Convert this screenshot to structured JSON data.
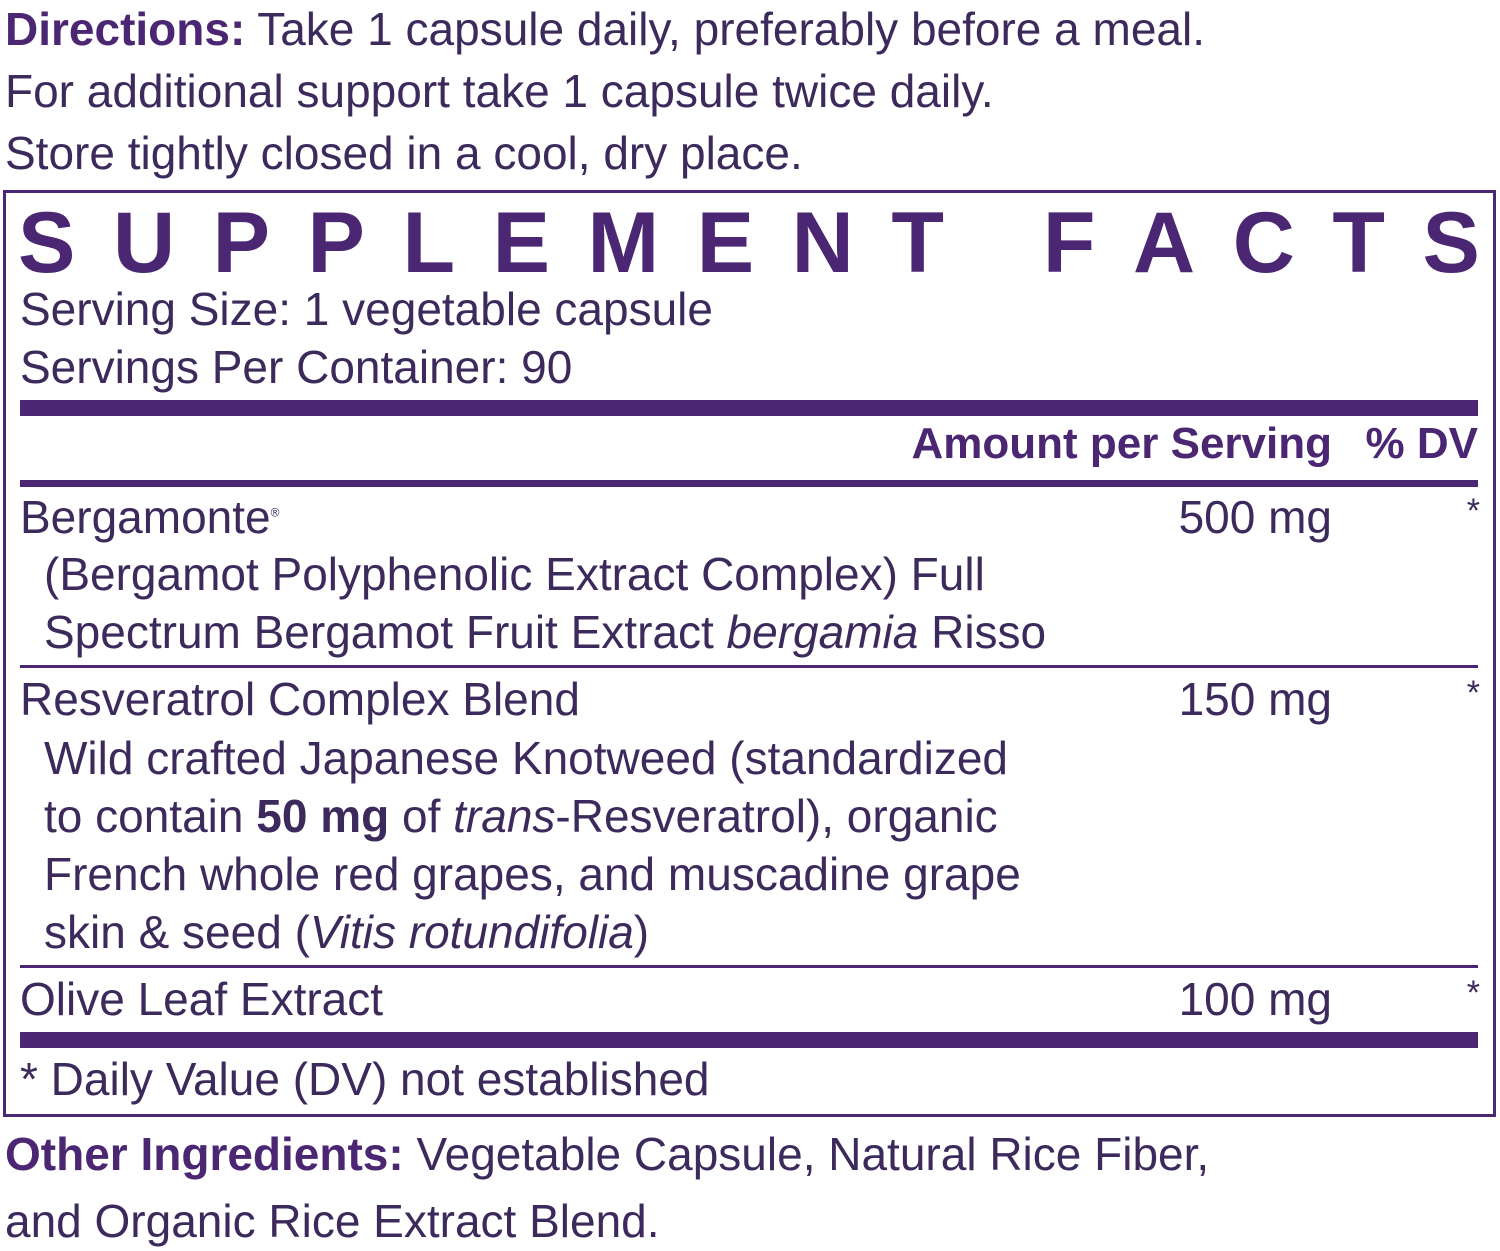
{
  "directions": {
    "label": "Directions:",
    "line1": "Take 1 capsule daily, preferably before a meal.",
    "line2": "For additional support take 1 capsule twice daily.",
    "line3": "Store tightly closed in a cool, dry place."
  },
  "facts": {
    "title": "SUPPLEMENT FACTS",
    "serving_size": "Serving Size: 1 vegetable capsule",
    "servings_per_container": "Servings Per Container: 90",
    "col_amount": "Amount per Serving",
    "col_dv": "% DV",
    "rows": [
      {
        "name": "Bergamonte",
        "mark": "®",
        "amount": "500 mg",
        "dv": "*",
        "desc1": "(Bergamot Polyphenolic Extract Complex) Full",
        "desc2a": "Spectrum Bergamot Fruit Extract ",
        "desc2i": "bergamia",
        "desc2b": " Risso"
      },
      {
        "name": "Resveratrol Complex Blend",
        "amount": "150 mg",
        "dv": "*",
        "desc1": "Wild crafted Japanese Knotweed (standardized",
        "desc2a": "to contain ",
        "desc2b": "50 mg",
        "desc2c": " of ",
        "desc2i": "trans",
        "desc2d": "-Resveratrol), organic",
        "desc3": "French whole red grapes, and muscadine grape",
        "desc4a": "skin & seed (",
        "desc4i": "Vitis rotundifolia",
        "desc4b": ")"
      },
      {
        "name": "Olive Leaf Extract",
        "amount": "100 mg",
        "dv": "*"
      }
    ],
    "footnote": "* Daily Value (DV) not established"
  },
  "other": {
    "label": "Other Ingredients:",
    "line1": "Vegetable Capsule, Natural Rice Fiber,",
    "line2": "and Organic Rice Extract Blend."
  },
  "colors": {
    "accent": "#4b2673",
    "text": "#3d2a5c"
  }
}
